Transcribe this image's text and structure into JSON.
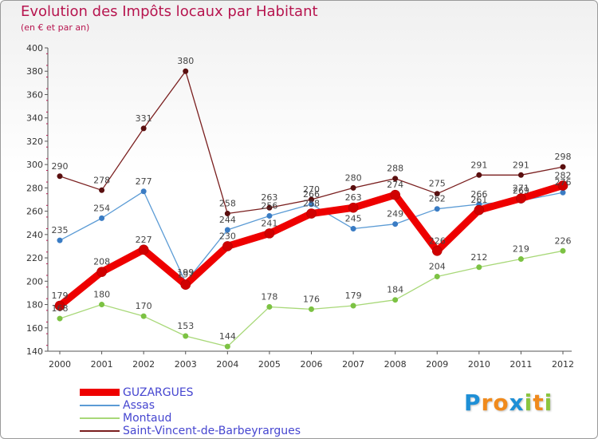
{
  "header": {
    "title": "Evolution des Impôts locaux par Habitant",
    "subtitle": "(en € et par an)"
  },
  "brand": {
    "letters": [
      "P",
      "r",
      "o",
      "x",
      "i",
      "t",
      "i"
    ],
    "colors": [
      "#1e8fd6",
      "#f08a1c",
      "#f08a1c",
      "#1e8fd6",
      "#8bc53f",
      "#f08a1c",
      "#8bc53f"
    ]
  },
  "chart_data": {
    "type": "line",
    "title": "Evolution des Impôts locaux par Habitant",
    "ylabel": "(en € et par an)",
    "xlabel": "",
    "categories": [
      "2000",
      "2001",
      "2002",
      "2003",
      "2004",
      "2005",
      "2006",
      "2007",
      "2008",
      "2009",
      "2010",
      "2011",
      "2012"
    ],
    "ylim": [
      140,
      400
    ],
    "yticks": [
      140,
      160,
      180,
      200,
      220,
      240,
      260,
      280,
      300,
      320,
      340,
      360,
      380,
      400
    ],
    "grid": false,
    "legend": "bottom-left",
    "series": [
      {
        "name": "Saint-Vincent-de-Barbeyrargues",
        "color": "#7a1f1f",
        "marker": "#5a0f0f",
        "emphasis": false,
        "values": [
          290,
          278,
          331,
          380,
          258,
          263,
          270,
          280,
          288,
          275,
          291,
          291,
          298
        ]
      },
      {
        "name": "Assas",
        "color": "#5b9bd5",
        "marker": "#3a7cc4",
        "emphasis": false,
        "values": [
          235,
          254,
          277,
          199,
          244,
          256,
          266,
          245,
          249,
          262,
          266,
          269,
          276
        ]
      },
      {
        "name": "Montaud",
        "color": "#a8d878",
        "marker": "#7cc243",
        "emphasis": false,
        "values": [
          168,
          180,
          170,
          153,
          144,
          178,
          176,
          179,
          184,
          204,
          212,
          219,
          226
        ]
      },
      {
        "name": "GUZARGUES",
        "color": "#ee0000",
        "marker": "#d00000",
        "emphasis": true,
        "values": [
          179,
          208,
          227,
          197,
          230,
          241,
          258,
          263,
          274,
          226,
          261,
          271,
          282
        ]
      }
    ],
    "legend_order": [
      "GUZARGUES",
      "Assas",
      "Montaud",
      "Saint-Vincent-de-Barbeyrargues"
    ]
  }
}
